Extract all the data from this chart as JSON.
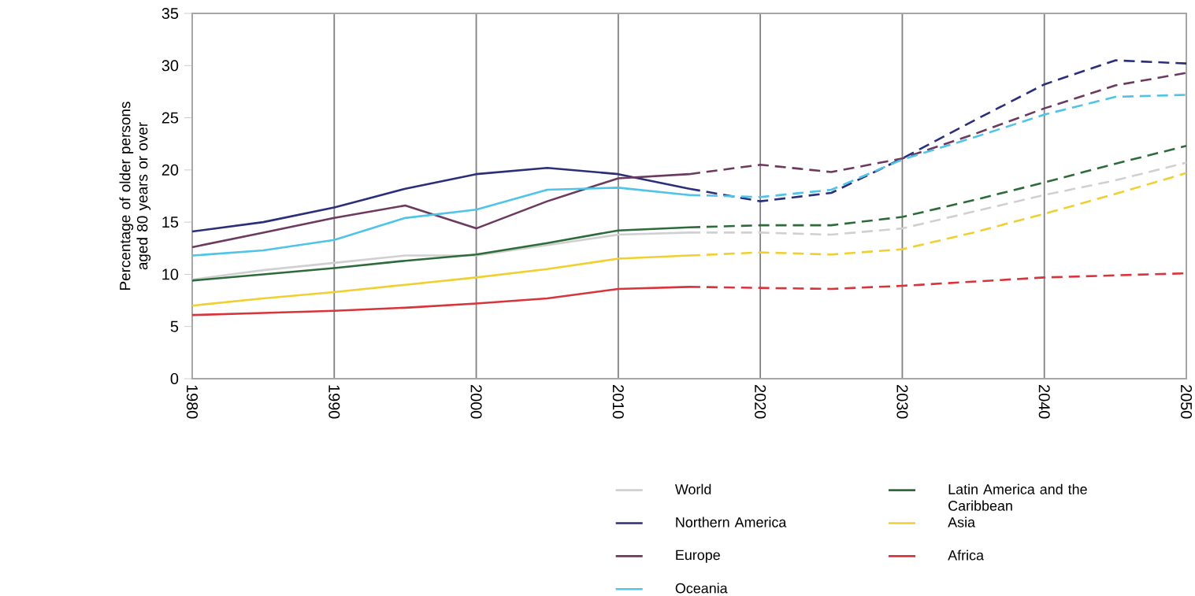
{
  "chart_data": {
    "type": "line",
    "ylabel": "Percentage of older persons aged 80 years or over",
    "xlim": [
      1980,
      2050
    ],
    "ylim": [
      0,
      35
    ],
    "xticks": [
      1980,
      1990,
      2000,
      2010,
      2020,
      2030,
      2040,
      2050
    ],
    "yticks": [
      0,
      5,
      10,
      15,
      20,
      25,
      30,
      35
    ],
    "grid": "x",
    "legend": "bottom",
    "series": [
      {
        "name": "World",
        "color": "#d0d0d0",
        "x": [
          1980,
          1985,
          1990,
          1995,
          2000,
          2005,
          2010,
          2015
        ],
        "values": [
          9.5,
          10.4,
          11.1,
          11.8,
          11.8,
          12.8,
          13.8,
          14.0
        ]
      },
      {
        "name": "Northern America",
        "color": "#2b2f7a",
        "x": [
          1980,
          1985,
          1990,
          1995,
          2000,
          2005,
          2010,
          2015
        ],
        "values": [
          14.1,
          15.0,
          16.4,
          18.2,
          19.6,
          20.2,
          19.6,
          18.2
        ]
      },
      {
        "name": "Europe",
        "color": "#6b3a5e",
        "x": [
          1980,
          1985,
          1990,
          1995,
          2000,
          2005,
          2010,
          2015
        ],
        "values": [
          12.6,
          14.0,
          15.4,
          16.6,
          14.4,
          17.0,
          19.2,
          19.6
        ]
      },
      {
        "name": "Oceania",
        "color": "#4fc3e8",
        "x": [
          1980,
          1985,
          1990,
          1995,
          2000,
          2005,
          2010,
          2015
        ],
        "values": [
          11.8,
          12.3,
          13.3,
          15.4,
          16.2,
          18.1,
          18.3,
          17.6
        ]
      },
      {
        "name": "Latin America and the Caribbean",
        "color": "#2e6b3a",
        "x": [
          1980,
          1985,
          1990,
          1995,
          2000,
          2005,
          2010,
          2015
        ],
        "values": [
          9.4,
          10.0,
          10.6,
          11.3,
          11.9,
          13.0,
          14.2,
          14.5
        ]
      },
      {
        "name": "Asia",
        "color": "#f0d030",
        "x": [
          1980,
          1985,
          1990,
          1995,
          2000,
          2005,
          2010,
          2015
        ],
        "values": [
          7.0,
          7.7,
          8.3,
          9.0,
          9.7,
          10.5,
          11.5,
          11.8
        ]
      },
      {
        "name": "Africa",
        "color": "#d8343c",
        "x": [
          1980,
          1985,
          1990,
          1995,
          2000,
          2005,
          2010,
          2015
        ],
        "values": [
          6.1,
          6.3,
          6.5,
          6.8,
          7.2,
          7.7,
          8.6,
          8.8
        ]
      },
      {
        "color": "#d0d0d0",
        "line_style": "dashed",
        "x": [
          2015,
          2020,
          2025,
          2030,
          2035,
          2040,
          2045,
          2050
        ],
        "values": [
          14.0,
          14.0,
          13.8,
          14.4,
          16.0,
          17.6,
          19.0,
          20.7
        ]
      },
      {
        "color": "#2b2f7a",
        "line_style": "dashed",
        "x": [
          2015,
          2020,
          2025,
          2030,
          2035,
          2040,
          2045,
          2050
        ],
        "values": [
          18.2,
          17.0,
          17.8,
          21.1,
          24.7,
          28.2,
          30.5,
          30.2
        ]
      },
      {
        "color": "#6b3a5e",
        "line_style": "dashed",
        "x": [
          2015,
          2020,
          2025,
          2030,
          2035,
          2040,
          2045,
          2050
        ],
        "values": [
          19.6,
          20.5,
          19.8,
          21.1,
          23.4,
          25.9,
          28.1,
          29.3
        ]
      },
      {
        "color": "#4fc3e8",
        "line_style": "dashed",
        "x": [
          2015,
          2020,
          2025,
          2030,
          2035,
          2040,
          2045,
          2050
        ],
        "values": [
          17.6,
          17.4,
          18.1,
          21.0,
          23.1,
          25.3,
          27.0,
          27.2
        ]
      },
      {
        "color": "#2e6b3a",
        "line_style": "dashed",
        "x": [
          2015,
          2020,
          2025,
          2030,
          2035,
          2040,
          2045,
          2050
        ],
        "values": [
          14.5,
          14.7,
          14.7,
          15.5,
          17.1,
          18.8,
          20.6,
          22.3
        ]
      },
      {
        "color": "#f0d030",
        "line_style": "dashed",
        "x": [
          2015,
          2020,
          2025,
          2030,
          2035,
          2040,
          2045,
          2050
        ],
        "values": [
          11.8,
          12.1,
          11.9,
          12.4,
          14.0,
          15.8,
          17.7,
          19.7
        ]
      },
      {
        "color": "#d8343c",
        "line_style": "dashed",
        "x": [
          2015,
          2020,
          2025,
          2030,
          2035,
          2040,
          2045,
          2050
        ],
        "values": [
          8.8,
          8.7,
          8.6,
          8.9,
          9.3,
          9.7,
          9.9,
          10.1
        ]
      }
    ]
  }
}
